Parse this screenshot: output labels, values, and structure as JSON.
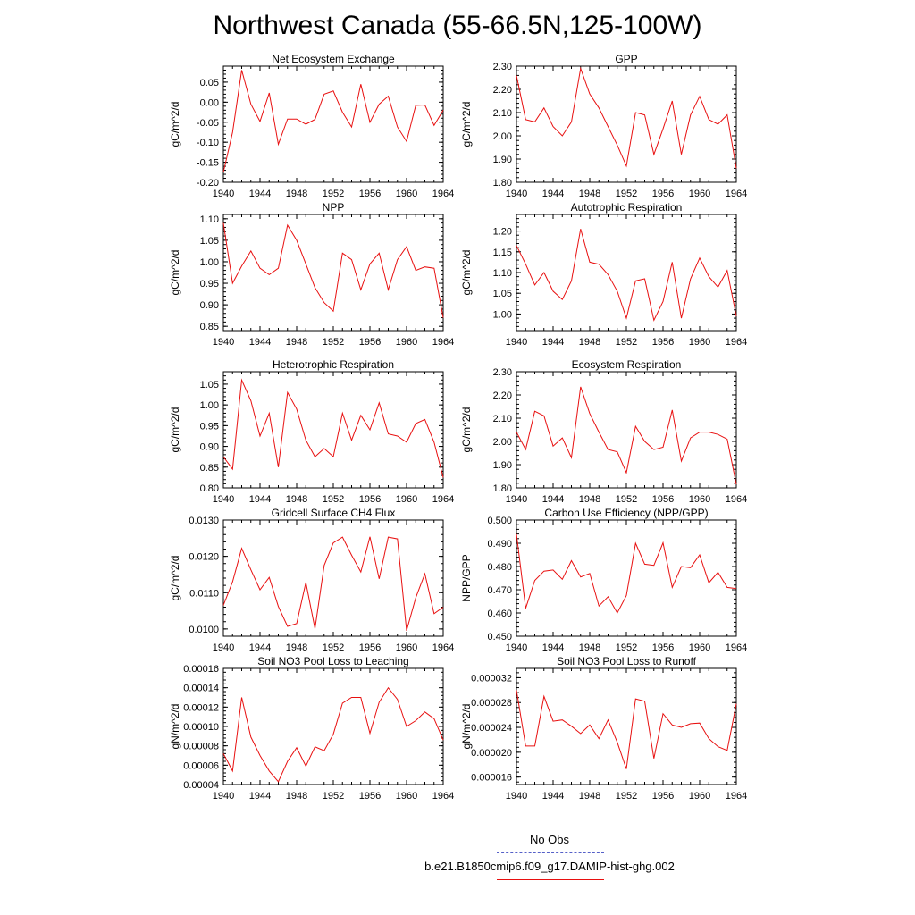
{
  "title": "Northwest Canada (55-66.5N,125-100W)",
  "legend": {
    "obs_label": "No Obs",
    "obs_color": "#5560c8",
    "case_label": "b.e21.B1850cmip6.f09_g17.DAMIP-hist-ghg.002",
    "case_color": "#e81010"
  },
  "chart_data": [
    {
      "type": "line",
      "title": "Net Ecosystem Exchange",
      "ylabel": "gC/m^2/d",
      "xlim": [
        1940,
        1964
      ],
      "ylim": [
        -0.2,
        0.09
      ],
      "xticks": [
        1940,
        1944,
        1948,
        1952,
        1956,
        1960,
        1964
      ],
      "yticks": [
        -0.2,
        -0.15,
        -0.1,
        -0.05,
        0.0,
        0.05
      ],
      "ytick_labels": [
        "-0.20",
        "-0.15",
        "-0.10",
        "-0.05",
        "0.00",
        "0.05"
      ],
      "x": [
        1940,
        1941,
        1942,
        1943,
        1944,
        1945,
        1946,
        1947,
        1948,
        1949,
        1950,
        1951,
        1952,
        1953,
        1954,
        1955,
        1956,
        1957,
        1958,
        1959,
        1960,
        1961,
        1962,
        1963,
        1964
      ],
      "values": [
        -0.175,
        -0.075,
        0.08,
        -0.005,
        -0.048,
        0.023,
        -0.105,
        -0.042,
        -0.042,
        -0.055,
        -0.043,
        0.02,
        0.028,
        -0.025,
        -0.062,
        0.045,
        -0.05,
        -0.005,
        0.015,
        -0.062,
        -0.098,
        -0.008,
        -0.007,
        -0.058,
        -0.02
      ]
    },
    {
      "type": "line",
      "title": "GPP",
      "ylabel": "gC/m^2/d",
      "xlim": [
        1940,
        1964
      ],
      "ylim": [
        1.8,
        2.3
      ],
      "xticks": [
        1940,
        1944,
        1948,
        1952,
        1956,
        1960,
        1964
      ],
      "yticks": [
        1.8,
        1.9,
        2.0,
        2.1,
        2.2,
        2.3
      ],
      "ytick_labels": [
        "1.80",
        "1.90",
        "2.00",
        "2.10",
        "2.20",
        "2.30"
      ],
      "x": [
        1940,
        1941,
        1942,
        1943,
        1944,
        1945,
        1946,
        1947,
        1948,
        1949,
        1950,
        1951,
        1952,
        1953,
        1954,
        1955,
        1956,
        1957,
        1958,
        1959,
        1960,
        1961,
        1962,
        1963,
        1964
      ],
      "values": [
        2.26,
        2.07,
        2.06,
        2.12,
        2.04,
        2.0,
        2.06,
        2.29,
        2.18,
        2.12,
        2.04,
        1.96,
        1.87,
        2.1,
        2.09,
        1.92,
        2.03,
        2.15,
        1.92,
        2.09,
        2.17,
        2.07,
        2.05,
        2.09,
        1.86
      ]
    },
    {
      "type": "line",
      "title": "NPP",
      "ylabel": "gC/m^2/d",
      "xlim": [
        1940,
        1964
      ],
      "ylim": [
        0.84,
        1.11
      ],
      "xticks": [
        1940,
        1944,
        1948,
        1952,
        1956,
        1960,
        1964
      ],
      "yticks": [
        0.85,
        0.9,
        0.95,
        1.0,
        1.05,
        1.1
      ],
      "ytick_labels": [
        "0.85",
        "0.90",
        "0.95",
        "1.00",
        "1.05",
        "1.10"
      ],
      "x": [
        1940,
        1941,
        1942,
        1943,
        1944,
        1945,
        1946,
        1947,
        1948,
        1949,
        1950,
        1951,
        1952,
        1953,
        1954,
        1955,
        1956,
        1957,
        1958,
        1959,
        1960,
        1961,
        1962,
        1963,
        1964
      ],
      "values": [
        1.09,
        0.95,
        0.99,
        1.025,
        0.985,
        0.97,
        0.985,
        1.085,
        1.05,
        0.995,
        0.94,
        0.905,
        0.885,
        1.02,
        1.005,
        0.935,
        0.995,
        1.02,
        0.935,
        1.005,
        1.035,
        0.98,
        0.988,
        0.985,
        0.87
      ]
    },
    {
      "type": "line",
      "title": "Autotrophic Respiration",
      "ylabel": "gC/m^2/d",
      "xlim": [
        1940,
        1964
      ],
      "ylim": [
        0.96,
        1.24
      ],
      "xticks": [
        1940,
        1944,
        1948,
        1952,
        1956,
        1960,
        1964
      ],
      "yticks": [
        1.0,
        1.05,
        1.1,
        1.15,
        1.2
      ],
      "ytick_labels": [
        "1.00",
        "1.05",
        "1.10",
        "1.15",
        "1.20"
      ],
      "x": [
        1940,
        1941,
        1942,
        1943,
        1944,
        1945,
        1946,
        1947,
        1948,
        1949,
        1950,
        1951,
        1952,
        1953,
        1954,
        1955,
        1956,
        1957,
        1958,
        1959,
        1960,
        1961,
        1962,
        1963,
        1964
      ],
      "values": [
        1.165,
        1.12,
        1.07,
        1.1,
        1.055,
        1.035,
        1.08,
        1.205,
        1.125,
        1.12,
        1.095,
        1.055,
        0.99,
        1.08,
        1.085,
        0.985,
        1.03,
        1.125,
        0.99,
        1.085,
        1.135,
        1.09,
        1.065,
        1.105,
        0.995
      ]
    },
    {
      "type": "line",
      "title": "Heterotrophic Respiration",
      "ylabel": "gC/m^2/d",
      "xlim": [
        1940,
        1964
      ],
      "ylim": [
        0.8,
        1.08
      ],
      "xticks": [
        1940,
        1944,
        1948,
        1952,
        1956,
        1960,
        1964
      ],
      "yticks": [
        0.8,
        0.85,
        0.9,
        0.95,
        1.0,
        1.05
      ],
      "ytick_labels": [
        "0.80",
        "0.85",
        "0.90",
        "0.95",
        "1.00",
        "1.05"
      ],
      "x": [
        1940,
        1941,
        1942,
        1943,
        1944,
        1945,
        1946,
        1947,
        1948,
        1949,
        1950,
        1951,
        1952,
        1953,
        1954,
        1955,
        1956,
        1957,
        1958,
        1959,
        1960,
        1961,
        1962,
        1963,
        1964
      ],
      "values": [
        0.875,
        0.845,
        1.06,
        1.01,
        0.925,
        0.98,
        0.85,
        1.03,
        0.99,
        0.915,
        0.875,
        0.895,
        0.875,
        0.98,
        0.915,
        0.975,
        0.94,
        1.005,
        0.93,
        0.925,
        0.91,
        0.955,
        0.965,
        0.91,
        0.825
      ]
    },
    {
      "type": "line",
      "title": "Ecosystem Respiration",
      "ylabel": "gC/m^2/d",
      "xlim": [
        1940,
        1964
      ],
      "ylim": [
        1.8,
        2.3
      ],
      "xticks": [
        1940,
        1944,
        1948,
        1952,
        1956,
        1960,
        1964
      ],
      "yticks": [
        1.8,
        1.9,
        2.0,
        2.1,
        2.2,
        2.3
      ],
      "ytick_labels": [
        "1.80",
        "1.90",
        "2.00",
        "2.10",
        "2.20",
        "2.30"
      ],
      "x": [
        1940,
        1941,
        1942,
        1943,
        1944,
        1945,
        1946,
        1947,
        1948,
        1949,
        1950,
        1951,
        1952,
        1953,
        1954,
        1955,
        1956,
        1957,
        1958,
        1959,
        1960,
        1961,
        1962,
        1963,
        1964
      ],
      "values": [
        2.04,
        1.965,
        2.13,
        2.11,
        1.98,
        2.015,
        1.93,
        2.235,
        2.12,
        2.04,
        1.965,
        1.955,
        1.865,
        2.065,
        2.0,
        1.965,
        1.975,
        2.135,
        1.915,
        2.015,
        2.04,
        2.04,
        2.03,
        2.01,
        1.815
      ]
    },
    {
      "type": "line",
      "title": "Gridcell Surface CH4 Flux",
      "ylabel": "gC/m^2/d",
      "xlim": [
        1940,
        1964
      ],
      "ylim": [
        0.0098,
        0.013
      ],
      "xticks": [
        1940,
        1944,
        1948,
        1952,
        1956,
        1960,
        1964
      ],
      "yticks": [
        0.01,
        0.011,
        0.012,
        0.013
      ],
      "ytick_labels": [
        "0.0100",
        "0.0110",
        "0.0120",
        "0.0130"
      ],
      "x": [
        1940,
        1941,
        1942,
        1943,
        1944,
        1945,
        1946,
        1947,
        1948,
        1949,
        1950,
        1951,
        1952,
        1953,
        1954,
        1955,
        1956,
        1957,
        1958,
        1959,
        1960,
        1961,
        1962,
        1963,
        1964
      ],
      "values": [
        0.01065,
        0.0113,
        0.01222,
        0.01163,
        0.01108,
        0.01142,
        0.01062,
        0.01007,
        0.01015,
        0.01128,
        0.01001,
        0.01175,
        0.01237,
        0.01253,
        0.01203,
        0.01157,
        0.01254,
        0.01138,
        0.01253,
        0.01248,
        0.00995,
        0.01086,
        0.01152,
        0.01042,
        0.0106
      ]
    },
    {
      "type": "line",
      "title": "Carbon Use Efficiency (NPP/GPP)",
      "ylabel": "NPP/GPP",
      "xlim": [
        1940,
        1964
      ],
      "ylim": [
        0.45,
        0.5
      ],
      "xticks": [
        1940,
        1944,
        1948,
        1952,
        1956,
        1960,
        1964
      ],
      "yticks": [
        0.45,
        0.46,
        0.47,
        0.48,
        0.49,
        0.5
      ],
      "ytick_labels": [
        "0.450",
        "0.460",
        "0.470",
        "0.480",
        "0.490",
        "0.500"
      ],
      "x": [
        1940,
        1941,
        1942,
        1943,
        1944,
        1945,
        1946,
        1947,
        1948,
        1949,
        1950,
        1951,
        1952,
        1953,
        1954,
        1955,
        1956,
        1957,
        1958,
        1959,
        1960,
        1961,
        1962,
        1963,
        1964
      ],
      "values": [
        0.494,
        0.462,
        0.474,
        0.478,
        0.4785,
        0.4745,
        0.4825,
        0.4755,
        0.477,
        0.463,
        0.467,
        0.46,
        0.4675,
        0.49,
        0.481,
        0.4805,
        0.4902,
        0.471,
        0.48,
        0.4795,
        0.485,
        0.473,
        0.4775,
        0.471,
        0.4705
      ]
    },
    {
      "type": "line",
      "title": "Soil NO3 Pool Loss to Leaching",
      "ylabel": "gN/m^2/d",
      "xlim": [
        1940,
        1964
      ],
      "ylim": [
        4e-05,
        0.00016
      ],
      "xticks": [
        1940,
        1944,
        1948,
        1952,
        1956,
        1960,
        1964
      ],
      "yticks": [
        4e-05,
        6e-05,
        8e-05,
        0.0001,
        0.00012,
        0.00014,
        0.00016
      ],
      "ytick_labels": [
        "0.00004",
        "0.00006",
        "0.00008",
        "0.00010",
        "0.00012",
        "0.00014",
        "0.00016"
      ],
      "x": [
        1940,
        1941,
        1942,
        1943,
        1944,
        1945,
        1946,
        1947,
        1948,
        1949,
        1950,
        1951,
        1952,
        1953,
        1954,
        1955,
        1956,
        1957,
        1958,
        1959,
        1960,
        1961,
        1962,
        1963,
        1964
      ],
      "values": [
        7.2e-05,
        5.4e-05,
        0.00013,
        8.9e-05,
        7e-05,
        5.4e-05,
        4.3e-05,
        6.4e-05,
        7.8e-05,
        5.9e-05,
        7.9e-05,
        7.5e-05,
        9.2e-05,
        0.000124,
        0.00013,
        0.00013,
        9.3e-05,
        0.000125,
        0.00014,
        0.000128,
        0.0001,
        0.000106,
        0.000115,
        0.000108,
        8.6e-05
      ]
    },
    {
      "type": "line",
      "title": "Soil NO3 Pool Loss to Runoff",
      "ylabel": "gN/m^2/d",
      "xlim": [
        1940,
        1964
      ],
      "ylim": [
        1.48e-05,
        3.35e-05
      ],
      "xticks": [
        1940,
        1944,
        1948,
        1952,
        1956,
        1960,
        1964
      ],
      "yticks": [
        1.6e-05,
        2e-05,
        2.4e-05,
        2.8e-05,
        3.2e-05
      ],
      "ytick_labels": [
        "0.000016",
        "0.000020",
        "0.000024",
        "0.000028",
        "0.000032"
      ],
      "x": [
        1940,
        1941,
        1942,
        1943,
        1944,
        1945,
        1946,
        1947,
        1948,
        1949,
        1950,
        1951,
        1952,
        1953,
        1954,
        1955,
        1956,
        1957,
        1958,
        1959,
        1960,
        1961,
        1962,
        1963,
        1964
      ],
      "values": [
        3e-05,
        2.1e-05,
        2.1e-05,
        2.9e-05,
        2.5e-05,
        2.52e-05,
        2.42e-05,
        2.3e-05,
        2.44e-05,
        2.22e-05,
        2.52e-05,
        2.16e-05,
        1.73e-05,
        2.86e-05,
        2.82e-05,
        1.9e-05,
        2.62e-05,
        2.44e-05,
        2.4e-05,
        2.46e-05,
        2.47e-05,
        2.22e-05,
        2.09e-05,
        2.03e-05,
        2.78e-05
      ]
    }
  ]
}
